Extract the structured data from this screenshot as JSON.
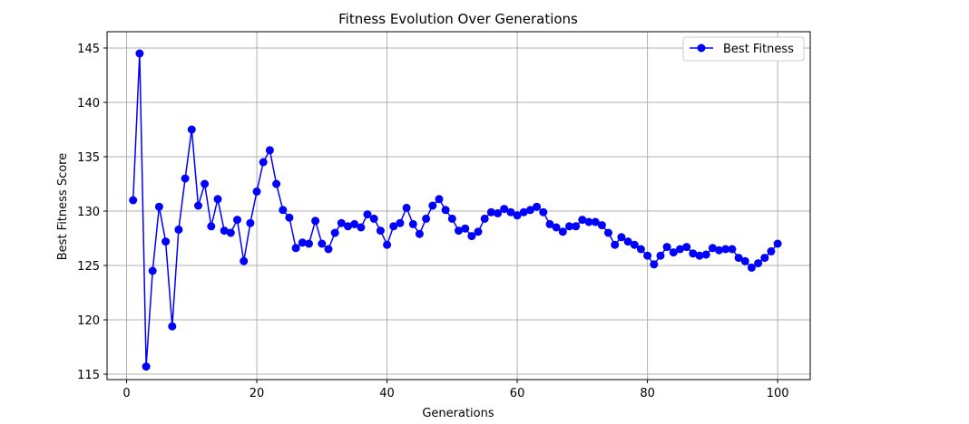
{
  "chart_data": {
    "type": "line",
    "title": "Fitness Evolution Over Generations",
    "xlabel": "Generations",
    "ylabel": "Best Fitness Score",
    "xlim": [
      -3,
      105
    ],
    "ylim": [
      114.5,
      146.5
    ],
    "xticks": [
      0,
      20,
      40,
      60,
      80,
      100
    ],
    "yticks": [
      115,
      120,
      125,
      130,
      135,
      140,
      145
    ],
    "grid": true,
    "legend_position": "top-right",
    "series": [
      {
        "name": "Best Fitness",
        "color": "#0000ff",
        "marker": "circle",
        "x": [
          1,
          2,
          3,
          4,
          5,
          6,
          7,
          8,
          9,
          10,
          11,
          12,
          13,
          14,
          15,
          16,
          17,
          18,
          19,
          20,
          21,
          22,
          23,
          24,
          25,
          26,
          27,
          28,
          29,
          30,
          31,
          32,
          33,
          34,
          35,
          36,
          37,
          38,
          39,
          40,
          41,
          42,
          43,
          44,
          45,
          46,
          47,
          48,
          49,
          50,
          51,
          52,
          53,
          54,
          55,
          56,
          57,
          58,
          59,
          60,
          61,
          62,
          63,
          64,
          65,
          66,
          67,
          68,
          69,
          70,
          71,
          72,
          73,
          74,
          75,
          76,
          77,
          78,
          79,
          80,
          81,
          82,
          83,
          84,
          85,
          86,
          87,
          88,
          89,
          90,
          91,
          92,
          93,
          94,
          95,
          96,
          97,
          98,
          99,
          100
        ],
        "y": [
          131.0,
          144.5,
          115.7,
          124.5,
          130.4,
          127.2,
          119.4,
          128.3,
          133.0,
          137.5,
          130.5,
          132.5,
          128.6,
          131.1,
          128.2,
          128.0,
          129.2,
          125.4,
          128.9,
          131.8,
          134.5,
          135.6,
          132.5,
          130.1,
          129.4,
          126.6,
          127.1,
          127.0,
          129.1,
          127.0,
          126.5,
          128.0,
          128.9,
          128.6,
          128.8,
          128.5,
          129.7,
          129.3,
          128.2,
          126.9,
          128.6,
          128.9,
          130.3,
          128.8,
          127.9,
          129.3,
          130.5,
          131.1,
          130.1,
          129.3,
          128.2,
          128.4,
          127.7,
          128.1,
          129.3,
          129.9,
          129.8,
          130.2,
          129.9,
          129.6,
          129.9,
          130.1,
          130.4,
          129.9,
          128.8,
          128.5,
          128.1,
          128.6,
          128.6,
          129.2,
          129.0,
          129.0,
          128.7,
          128.0,
          126.9,
          127.6,
          127.2,
          126.9,
          126.5,
          125.9,
          125.1,
          125.9,
          126.7,
          126.2,
          126.5,
          126.7,
          126.1,
          125.9,
          126.0,
          126.6,
          126.4,
          126.5,
          126.5,
          125.7,
          125.4,
          124.8,
          125.2,
          125.7,
          126.3,
          127.0
        ]
      }
    ]
  }
}
